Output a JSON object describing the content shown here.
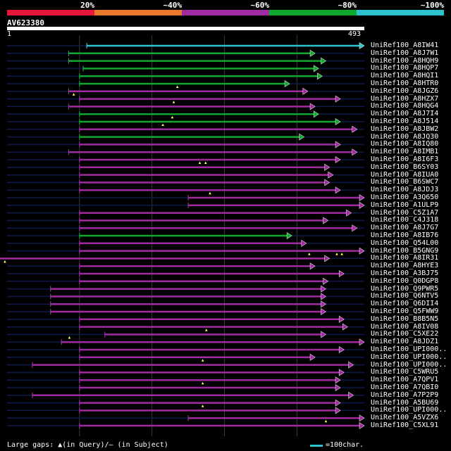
{
  "legend": {
    "colors": [
      "#e8183a",
      "#e8782a",
      "#a02ba0",
      "#11a830",
      "#2cc3cf"
    ],
    "labels": [
      "20%",
      "~40%",
      "~60%",
      "~80%",
      "~100%"
    ]
  },
  "query": {
    "id": "AV623380",
    "start": "1",
    "end": "493",
    "length": 493
  },
  "hits": [
    {
      "name": "UniRef100_A8IW41",
      "color": "#2cc3cf",
      "qs": 110,
      "qe": 493,
      "gaps": []
    },
    {
      "name": "UniRef100_A8J7W1",
      "color": "#11a830",
      "qs": 85,
      "qe": 425,
      "gaps": []
    },
    {
      "name": "UniRef100_A8HQH9",
      "color": "#11a830",
      "qs": 85,
      "qe": 440,
      "gaps": []
    },
    {
      "name": "UniRef100_A8HQP7",
      "color": "#11a830",
      "qs": 105,
      "qe": 430,
      "gaps": []
    },
    {
      "name": "UniRef100_A8HQI1",
      "color": "#11a830",
      "qs": 100,
      "qe": 435,
      "gaps": []
    },
    {
      "name": "UniRef100_A8HTR0",
      "color": "#11a830",
      "qs": 100,
      "qe": 390,
      "gaps": [
        {
          "pos": 235
        }
      ]
    },
    {
      "name": "UniRef100_A8JGZ6",
      "color": "#a02ba0",
      "qs": 85,
      "qe": 415,
      "gaps": [
        {
          "pos": 92
        }
      ]
    },
    {
      "name": "UniRef100_A8HZX7",
      "color": "#a02ba0",
      "qs": 100,
      "qe": 460,
      "gaps": [
        {
          "pos": 230
        }
      ]
    },
    {
      "name": "UniRef100_A8HQG4",
      "color": "#a02ba0",
      "qs": 85,
      "qe": 425,
      "gaps": []
    },
    {
      "name": "UniRef100_A8J7I4",
      "color": "#11a830",
      "qs": 100,
      "qe": 430,
      "gaps": [
        {
          "pos": 228
        }
      ]
    },
    {
      "name": "UniRef100_A8J514",
      "color": "#11a830",
      "qs": 100,
      "qe": 460,
      "gaps": [
        {
          "pos": 215
        }
      ]
    },
    {
      "name": "UniRef100_A8JBW2",
      "color": "#a02ba0",
      "qs": 100,
      "qe": 483,
      "gaps": []
    },
    {
      "name": "UniRef100_A8JQ30",
      "color": "#11a830",
      "qs": 100,
      "qe": 410,
      "gaps": []
    },
    {
      "name": "UniRef100_A8IQ80",
      "color": "#a02ba0",
      "qs": 100,
      "qe": 460,
      "gaps": []
    },
    {
      "name": "UniRef100_A8IMB1",
      "color": "#a02ba0",
      "qs": 85,
      "qe": 483,
      "gaps": []
    },
    {
      "name": "UniRef100_A8I6F3",
      "color": "#a02ba0",
      "qs": 100,
      "qe": 460,
      "gaps": [
        {
          "pos": 266
        },
        {
          "pos": 274
        }
      ]
    },
    {
      "name": "UniRef100_B6SY03",
      "color": "#a02ba0",
      "qs": 100,
      "qe": 445,
      "gaps": []
    },
    {
      "name": "UniRef100_A8IUA0",
      "color": "#a02ba0",
      "qs": 100,
      "qe": 450,
      "gaps": []
    },
    {
      "name": "UniRef100_B6SWC7",
      "color": "#a02ba0",
      "qs": 100,
      "qe": 445,
      "gaps": []
    },
    {
      "name": "UniRef100_A8JDJ3",
      "color": "#a02ba0",
      "qs": 100,
      "qe": 460,
      "gaps": [
        {
          "pos": 280
        }
      ]
    },
    {
      "name": "UniRef100_A3Q650",
      "color": "#a02ba0",
      "qs": 250,
      "qe": 493,
      "gaps": []
    },
    {
      "name": "UniRef100_A1ULP9",
      "color": "#a02ba0",
      "qs": 250,
      "qe": 493,
      "gaps": []
    },
    {
      "name": "UniRef100_C5Z1A7",
      "color": "#a02ba0",
      "qs": 100,
      "qe": 475,
      "gaps": []
    },
    {
      "name": "UniRef100_C4J318",
      "color": "#a02ba0",
      "qs": 100,
      "qe": 443,
      "gaps": []
    },
    {
      "name": "UniRef100_A8J7G7",
      "color": "#a02ba0",
      "qs": 100,
      "qe": 483,
      "gaps": []
    },
    {
      "name": "UniRef100_A8IB76",
      "color": "#11a830",
      "qs": 100,
      "qe": 393,
      "gaps": []
    },
    {
      "name": "UniRef100_Q54L00",
      "color": "#a02ba0",
      "qs": 100,
      "qe": 413,
      "gaps": []
    },
    {
      "name": "UniRef100_B5GNG9",
      "color": "#a02ba0",
      "qs": 100,
      "qe": 493,
      "gaps": [
        {
          "pos": 417
        },
        {
          "pos": 455
        },
        {
          "pos": 462
        }
      ]
    },
    {
      "name": "UniRef100_A8IR31",
      "color": "#a02ba0",
      "qs": -12,
      "qe": 445,
      "gaps": [
        {
          "pos": -3
        }
      ]
    },
    {
      "name": "UniRef100_A8HYE3",
      "color": "#a02ba0",
      "qs": 100,
      "qe": 425,
      "gaps": []
    },
    {
      "name": "UniRef100_A3BJ75",
      "color": "#a02ba0",
      "qs": 100,
      "qe": 465,
      "gaps": []
    },
    {
      "name": "UniRef100_Q0DGP8",
      "color": "#a02ba0",
      "qs": 100,
      "qe": 443,
      "gaps": []
    },
    {
      "name": "UniRef100_Q9PWR5",
      "color": "#a02ba0",
      "qs": 60,
      "qe": 440,
      "gaps": []
    },
    {
      "name": "UniRef100_Q6NTV5",
      "color": "#a02ba0",
      "qs": 60,
      "qe": 440,
      "gaps": []
    },
    {
      "name": "UniRef100_Q6DII4",
      "color": "#a02ba0",
      "qs": 60,
      "qe": 440,
      "gaps": []
    },
    {
      "name": "UniRef100_Q5FWW9",
      "color": "#a02ba0",
      "qs": 60,
      "qe": 440,
      "gaps": []
    },
    {
      "name": "UniRef100_B8B5N5",
      "color": "#a02ba0",
      "qs": 100,
      "qe": 465,
      "gaps": []
    },
    {
      "name": "UniRef100_A8IV08",
      "color": "#a02ba0",
      "qs": 100,
      "qe": 470,
      "gaps": [
        {
          "pos": 275
        }
      ]
    },
    {
      "name": "UniRef100_C5XE22",
      "color": "#a02ba0",
      "qs": 135,
      "qe": 440,
      "gaps": [
        {
          "pos": 86
        }
      ]
    },
    {
      "name": "UniRef100_A8JDZ1",
      "color": "#a02ba0",
      "qs": 75,
      "qe": 493,
      "gaps": []
    },
    {
      "name": "UniRef100_UPI000..",
      "color": "#a02ba0",
      "qs": 100,
      "qe": 465,
      "gaps": []
    },
    {
      "name": "UniRef100_UPI000..",
      "color": "#a02ba0",
      "qs": 100,
      "qe": 425,
      "gaps": [
        {
          "pos": 270
        }
      ]
    },
    {
      "name": "UniRef100_UPI000..",
      "color": "#a02ba0",
      "qs": 35,
      "qe": 478,
      "gaps": []
    },
    {
      "name": "UniRef100_C5WRU5",
      "color": "#a02ba0",
      "qs": 100,
      "qe": 465,
      "gaps": []
    },
    {
      "name": "UniRef100_A7QPV1",
      "color": "#a02ba0",
      "qs": 100,
      "qe": 460,
      "gaps": [
        {
          "pos": 270
        }
      ]
    },
    {
      "name": "UniRef100_A7QBI0",
      "color": "#a02ba0",
      "qs": 100,
      "qe": 460,
      "gaps": []
    },
    {
      "name": "UniRef100_A7P2P9",
      "color": "#a02ba0",
      "qs": 35,
      "qe": 478,
      "gaps": []
    },
    {
      "name": "UniRef100_A5BU69",
      "color": "#a02ba0",
      "qs": 100,
      "qe": 460,
      "gaps": [
        {
          "pos": 270
        }
      ]
    },
    {
      "name": "UniRef100_UPI000..",
      "color": "#a02ba0",
      "qs": 100,
      "qe": 460,
      "gaps": []
    },
    {
      "name": "UniRef100_A5VZX6",
      "color": "#a02ba0",
      "qs": 250,
      "qe": 493,
      "gaps": [
        {
          "pos": 440
        }
      ]
    },
    {
      "name": "UniRef100_C5XL91",
      "color": "#a02ba0",
      "qs": 100,
      "qe": 493,
      "gaps": []
    }
  ],
  "footer": {
    "gaps_label": "Large gaps: ▲(in Query)/– (in Subject)",
    "scale_label": "=100char."
  }
}
